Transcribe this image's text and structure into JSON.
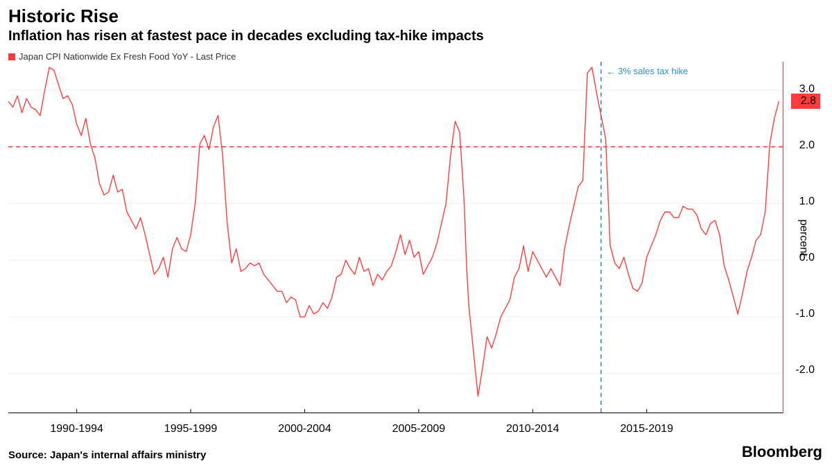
{
  "title": "Historic Rise",
  "subtitle": "Inflation has risen at fastest pace in decades excluding tax-hike impacts",
  "legend": {
    "label": "Japan CPI Nationwide Ex Fresh Food YoY - Last Price",
    "swatch_color": "#ff3b3b"
  },
  "annotation": {
    "text": "3% sales tax hike",
    "color": "#2a8ed6",
    "x": 2015.1,
    "arrow": "←"
  },
  "badge": {
    "value": "2.8",
    "bg": "#ff3b3b",
    "text_color": "#000000"
  },
  "y_axis": {
    "label": "percent",
    "min": -2.7,
    "max": 3.5,
    "ticks": [
      -2.0,
      -1.0,
      0.0,
      1.0,
      2.0,
      3.0
    ],
    "tick_labels": [
      "-2.0",
      "-1.0",
      "0.0",
      "1.0",
      "2.0",
      "3.0"
    ],
    "reference_line": 2.0,
    "reference_color": "#ff3b3b",
    "axis_line_color": "#ff3b3b",
    "grid_color": "#eeeeee"
  },
  "x_axis": {
    "min": 1989,
    "max": 2023,
    "tick_positions": [
      1992,
      1997,
      2002,
      2007,
      2012,
      2017
    ],
    "tick_labels": [
      "1990-1994",
      "1995-1999",
      "2000-2004",
      "2005-2009",
      "2010-2014",
      "2015-2019"
    ],
    "baseline_color": "#000000"
  },
  "line": {
    "color": "#ff3b3b",
    "width": 1.4
  },
  "vline": {
    "x": 2015.0,
    "color": "#2a8ed6",
    "dash": "6,5",
    "width": 1.6
  },
  "source": "Source: Japan's internal affairs ministry",
  "brand": "Bloomberg",
  "series": [
    [
      1989.0,
      2.8
    ],
    [
      1989.2,
      2.7
    ],
    [
      1989.4,
      2.9
    ],
    [
      1989.6,
      2.6
    ],
    [
      1989.8,
      2.85
    ],
    [
      1990.0,
      2.7
    ],
    [
      1990.2,
      2.65
    ],
    [
      1990.4,
      2.55
    ],
    [
      1990.6,
      3.0
    ],
    [
      1990.8,
      3.4
    ],
    [
      1991.0,
      3.35
    ],
    [
      1991.2,
      3.1
    ],
    [
      1991.4,
      2.85
    ],
    [
      1991.6,
      2.9
    ],
    [
      1991.8,
      2.75
    ],
    [
      1992.0,
      2.4
    ],
    [
      1992.2,
      2.2
    ],
    [
      1992.4,
      2.5
    ],
    [
      1992.6,
      2.05
    ],
    [
      1992.8,
      1.8
    ],
    [
      1993.0,
      1.35
    ],
    [
      1993.2,
      1.15
    ],
    [
      1993.4,
      1.2
    ],
    [
      1993.6,
      1.5
    ],
    [
      1993.8,
      1.2
    ],
    [
      1994.0,
      1.25
    ],
    [
      1994.2,
      0.85
    ],
    [
      1994.4,
      0.7
    ],
    [
      1994.6,
      0.55
    ],
    [
      1994.8,
      0.75
    ],
    [
      1995.0,
      0.45
    ],
    [
      1995.2,
      0.1
    ],
    [
      1995.4,
      -0.25
    ],
    [
      1995.6,
      -0.15
    ],
    [
      1995.8,
      0.05
    ],
    [
      1996.0,
      -0.3
    ],
    [
      1996.2,
      0.2
    ],
    [
      1996.4,
      0.4
    ],
    [
      1996.6,
      0.2
    ],
    [
      1996.8,
      0.15
    ],
    [
      1997.0,
      0.45
    ],
    [
      1997.2,
      1.0
    ],
    [
      1997.4,
      2.05
    ],
    [
      1997.6,
      2.2
    ],
    [
      1997.8,
      1.95
    ],
    [
      1998.0,
      2.35
    ],
    [
      1998.2,
      2.55
    ],
    [
      1998.4,
      1.85
    ],
    [
      1998.6,
      0.65
    ],
    [
      1998.8,
      -0.05
    ],
    [
      1999.0,
      0.2
    ],
    [
      1999.2,
      -0.2
    ],
    [
      1999.4,
      -0.15
    ],
    [
      1999.6,
      -0.05
    ],
    [
      1999.8,
      -0.1
    ],
    [
      2000.0,
      -0.05
    ],
    [
      2000.2,
      -0.25
    ],
    [
      2000.4,
      -0.35
    ],
    [
      2000.6,
      -0.45
    ],
    [
      2000.8,
      -0.55
    ],
    [
      2001.0,
      -0.55
    ],
    [
      2001.2,
      -0.75
    ],
    [
      2001.4,
      -0.65
    ],
    [
      2001.6,
      -0.7
    ],
    [
      2001.8,
      -1.0
    ],
    [
      2002.0,
      -1.0
    ],
    [
      2002.2,
      -0.8
    ],
    [
      2002.4,
      -0.95
    ],
    [
      2002.6,
      -0.9
    ],
    [
      2002.8,
      -0.75
    ],
    [
      2003.0,
      -0.85
    ],
    [
      2003.2,
      -0.65
    ],
    [
      2003.4,
      -0.3
    ],
    [
      2003.6,
      -0.25
    ],
    [
      2003.8,
      -0.0
    ],
    [
      2004.0,
      -0.15
    ],
    [
      2004.2,
      -0.25
    ],
    [
      2004.4,
      0.05
    ],
    [
      2004.6,
      -0.2
    ],
    [
      2004.8,
      -0.15
    ],
    [
      2005.0,
      -0.45
    ],
    [
      2005.2,
      -0.25
    ],
    [
      2005.4,
      -0.35
    ],
    [
      2005.6,
      -0.2
    ],
    [
      2005.8,
      -0.1
    ],
    [
      2006.0,
      0.15
    ],
    [
      2006.2,
      0.45
    ],
    [
      2006.4,
      0.1
    ],
    [
      2006.6,
      0.35
    ],
    [
      2006.8,
      0.05
    ],
    [
      2007.0,
      0.15
    ],
    [
      2007.2,
      -0.25
    ],
    [
      2007.4,
      -0.1
    ],
    [
      2007.6,
      0.05
    ],
    [
      2007.8,
      0.3
    ],
    [
      2008.0,
      0.65
    ],
    [
      2008.2,
      1.0
    ],
    [
      2008.4,
      1.85
    ],
    [
      2008.6,
      2.45
    ],
    [
      2008.8,
      2.25
    ],
    [
      2009.0,
      1.0
    ],
    [
      2009.1,
      -0.1
    ],
    [
      2009.2,
      -0.8
    ],
    [
      2009.4,
      -1.6
    ],
    [
      2009.6,
      -2.4
    ],
    [
      2009.8,
      -1.9
    ],
    [
      2010.0,
      -1.35
    ],
    [
      2010.2,
      -1.55
    ],
    [
      2010.4,
      -1.3
    ],
    [
      2010.6,
      -1.0
    ],
    [
      2010.8,
      -0.85
    ],
    [
      2011.0,
      -0.7
    ],
    [
      2011.2,
      -0.3
    ],
    [
      2011.4,
      -0.15
    ],
    [
      2011.6,
      0.25
    ],
    [
      2011.8,
      -0.2
    ],
    [
      2012.0,
      0.15
    ],
    [
      2012.2,
      -0.0
    ],
    [
      2012.4,
      -0.15
    ],
    [
      2012.6,
      -0.3
    ],
    [
      2012.8,
      -0.15
    ],
    [
      2013.0,
      -0.3
    ],
    [
      2013.2,
      -0.45
    ],
    [
      2013.4,
      0.2
    ],
    [
      2013.6,
      0.6
    ],
    [
      2013.8,
      0.95
    ],
    [
      2014.0,
      1.3
    ],
    [
      2014.2,
      1.4
    ],
    [
      2014.4,
      3.3
    ],
    [
      2014.6,
      3.4
    ],
    [
      2014.8,
      2.95
    ],
    [
      2015.0,
      2.55
    ],
    [
      2015.2,
      2.15
    ],
    [
      2015.4,
      0.25
    ],
    [
      2015.6,
      -0.05
    ],
    [
      2015.8,
      -0.15
    ],
    [
      2016.0,
      0.05
    ],
    [
      2016.2,
      -0.25
    ],
    [
      2016.4,
      -0.5
    ],
    [
      2016.6,
      -0.55
    ],
    [
      2016.8,
      -0.4
    ],
    [
      2017.0,
      0.05
    ],
    [
      2017.2,
      0.25
    ],
    [
      2017.4,
      0.45
    ],
    [
      2017.6,
      0.7
    ],
    [
      2017.8,
      0.85
    ],
    [
      2018.0,
      0.85
    ],
    [
      2018.2,
      0.75
    ],
    [
      2018.4,
      0.75
    ],
    [
      2018.6,
      0.95
    ],
    [
      2018.8,
      0.9
    ],
    [
      2019.0,
      0.9
    ],
    [
      2019.2,
      0.8
    ],
    [
      2019.4,
      0.55
    ],
    [
      2019.6,
      0.45
    ],
    [
      2019.8,
      0.65
    ],
    [
      2020.0,
      0.7
    ],
    [
      2020.2,
      0.45
    ],
    [
      2020.4,
      -0.1
    ],
    [
      2020.6,
      -0.35
    ],
    [
      2020.8,
      -0.65
    ],
    [
      2021.0,
      -0.95
    ],
    [
      2021.2,
      -0.6
    ],
    [
      2021.4,
      -0.2
    ],
    [
      2021.6,
      0.05
    ],
    [
      2021.8,
      0.35
    ],
    [
      2022.0,
      0.45
    ],
    [
      2022.2,
      0.85
    ],
    [
      2022.4,
      2.05
    ],
    [
      2022.6,
      2.5
    ],
    [
      2022.8,
      2.8
    ]
  ]
}
